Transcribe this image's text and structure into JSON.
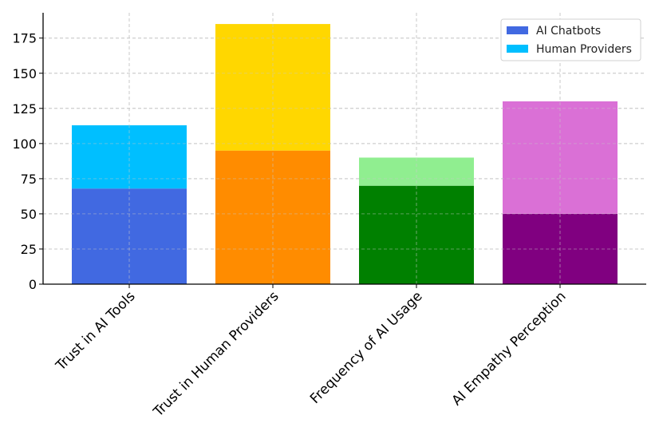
{
  "chart_data": {
    "type": "bar",
    "stacked": true,
    "categories": [
      "Trust in AI Tools",
      "Trust in Human Providers",
      "Frequency of AI Usage",
      "AI Empathy Perception"
    ],
    "series": [
      {
        "name": "AI Chatbots",
        "values": [
          68,
          95,
          70,
          50
        ],
        "colors": [
          "#4169E1",
          "#FF8C00",
          "#008000",
          "#800080"
        ]
      },
      {
        "name": "Human Providers",
        "values": [
          45,
          90,
          20,
          80
        ],
        "colors": [
          "#00BFFF",
          "#FFD700",
          "#90EE90",
          "#DA70D6"
        ]
      }
    ],
    "legend_colors": [
      "#4169E1",
      "#00BFFF"
    ],
    "title": "",
    "xlabel": "",
    "ylabel": "",
    "ylim": [
      0,
      193
    ],
    "yticks": [
      0,
      25,
      50,
      75,
      100,
      125,
      150,
      175
    ],
    "grid": true,
    "legend_position": "top-right"
  }
}
